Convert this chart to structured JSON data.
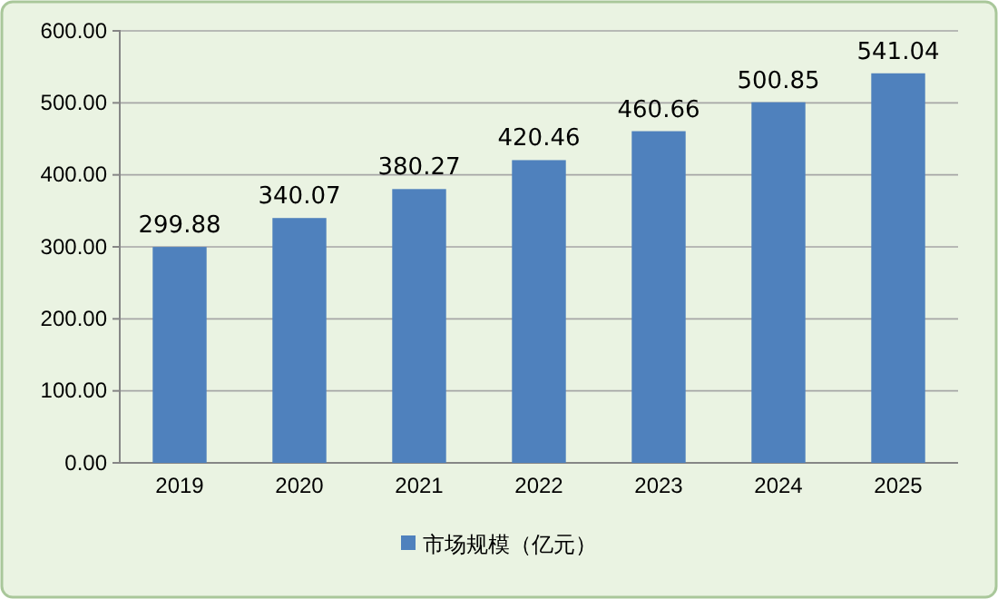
{
  "chart_data": {
    "type": "bar",
    "categories": [
      "2019",
      "2020",
      "2021",
      "2022",
      "2023",
      "2024",
      "2025"
    ],
    "series": [
      {
        "name": "市场规模（亿元）",
        "color": "#4f81bd",
        "values": [
          299.88,
          340.07,
          380.27,
          420.46,
          460.66,
          500.85,
          541.04
        ]
      }
    ],
    "ylim": [
      0,
      600
    ],
    "yticks": [
      {
        "value": 0,
        "label": "0.00"
      },
      {
        "value": 100,
        "label": "100.00"
      },
      {
        "value": 200,
        "label": "200.00"
      },
      {
        "value": 300,
        "label": "300.00"
      },
      {
        "value": 400,
        "label": "400.00"
      },
      {
        "value": 500,
        "label": "500.00"
      },
      {
        "value": 600,
        "label": "600.00"
      }
    ],
    "grid": "y",
    "legend": "bottom",
    "data_labels": true
  }
}
